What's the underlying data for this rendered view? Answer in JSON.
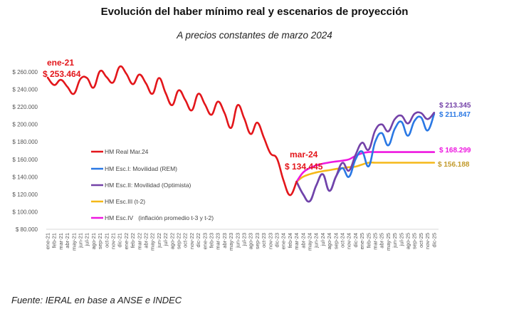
{
  "chart_data": {
    "type": "line",
    "title": "Evolución del haber mínimo real y escenarios de proyección",
    "subtitle": "A precios constantes de marzo 2024",
    "source": "Fuente: IERAL en base a ANSE e INDEC",
    "xlabel": "",
    "ylabel": "",
    "ylim": [
      80000,
      260000
    ],
    "y_ticks": [
      80000,
      100000,
      120000,
      140000,
      160000,
      180000,
      200000,
      220000,
      240000,
      260000
    ],
    "y_tick_labels": [
      "$ 80.000",
      "$ 100.000",
      "$ 120.000",
      "$ 140.000",
      "$ 160.000",
      "$ 180.000",
      "$ 200.000",
      "$ 220.000",
      "$ 240.000",
      "$ 260.000"
    ],
    "grid": false,
    "legend_position": "center-left",
    "categories": [
      "ene-21",
      "feb-21",
      "mar-21",
      "abr-21",
      "may-21",
      "jun-21",
      "jul-21",
      "ago-21",
      "sep-21",
      "oct-21",
      "nov-21",
      "dic-21",
      "ene-22",
      "feb-22",
      "mar-22",
      "abr-22",
      "may-22",
      "jun-22",
      "jul-22",
      "ago-22",
      "sep-22",
      "oct-22",
      "nov-22",
      "dic-22",
      "ene-23",
      "feb-23",
      "mar-23",
      "abr-23",
      "may-23",
      "jun-23",
      "jul-23",
      "ago-23",
      "sep-23",
      "oct-23",
      "nov-23",
      "dic-23",
      "ene-24",
      "feb-24",
      "mar-24",
      "abr-24",
      "may-24",
      "jun-24",
      "jul-24",
      "ago-24",
      "sep-24",
      "oct-24",
      "nov-24",
      "dic-24",
      "ene-25",
      "feb-25",
      "mar-25",
      "abr-25",
      "may-25",
      "jun-25",
      "jul-25",
      "ago-25",
      "sep-25",
      "oct-25",
      "nov-25",
      "dic-25"
    ],
    "series": [
      {
        "name": "HM Real Mar.24",
        "color": "#e3161b",
        "start_index": 0,
        "values": [
          253464,
          245000,
          251000,
          243000,
          235000,
          252000,
          253000,
          242000,
          261000,
          254000,
          248000,
          266000,
          258000,
          246000,
          257000,
          247000,
          235000,
          253000,
          236000,
          222000,
          239000,
          228000,
          216000,
          235000,
          223000,
          211000,
          226000,
          213000,
          196000,
          222000,
          207000,
          189000,
          202000,
          185000,
          167000,
          161000,
          136000,
          119000,
          134445
        ]
      },
      {
        "name": "HM Esc.I: Movilidad (REM)",
        "color": "#2a78e4",
        "start_index": 38,
        "values": [
          134445,
          120000,
          112000,
          130000,
          143000,
          124000,
          140000,
          150000,
          140000,
          160000,
          169000,
          152000,
          180000,
          190000,
          176000,
          195000,
          203000,
          187000,
          204000,
          208000,
          193000,
          211847
        ]
      },
      {
        "name": "HM Esc.II: Movilidad (Optimista)",
        "color": "#7442a8",
        "start_index": 38,
        "values": [
          134445,
          120000,
          112000,
          130000,
          143000,
          124000,
          140000,
          156000,
          147000,
          165000,
          179000,
          171000,
          193000,
          200000,
          192000,
          206000,
          210000,
          201000,
          212000,
          213000,
          206000,
          213345
        ]
      },
      {
        "name": "HM Esc.III (t-2)",
        "color": "#f5b818",
        "start_index": 38,
        "values": [
          134445,
          140000,
          143000,
          145000,
          146500,
          147600,
          149000,
          150000,
          151000,
          151700,
          154000,
          156188,
          156188,
          156188,
          156188,
          156188,
          156188,
          156188,
          156188,
          156188,
          156188,
          156188
        ]
      },
      {
        "name": "HM Esc.IV   (inflación promedio t-3 y t-2)",
        "color": "#ee18e0",
        "start_index": 38,
        "values": [
          134445,
          145000,
          150000,
          153000,
          155000,
          156500,
          157500,
          158500,
          160000,
          164000,
          167000,
          168299,
          168299,
          168299,
          168299,
          168299,
          168299,
          168299,
          168299,
          168299,
          168299,
          168299
        ]
      }
    ],
    "annotations": [
      {
        "label": "ene-21",
        "value_label": "$ 253.464",
        "color": "#e3161b",
        "index": 0
      },
      {
        "label": "mar-24",
        "value_label": "$ 134.445",
        "color": "#e3161b",
        "index": 38
      },
      {
        "value_label": "$ 213.345",
        "color": "#7442a8",
        "series": "HM Esc.II: Movilidad (Optimista)"
      },
      {
        "value_label": "$ 211.847",
        "color": "#2a78e4",
        "series": "HM Esc.I: Movilidad (REM)"
      },
      {
        "value_label": "$ 168.299",
        "color": "#ee18e0",
        "series": "HM Esc.IV   (inflación promedio t-3 y t-2)"
      },
      {
        "value_label": "$ 156.188",
        "color": "#c29a2a",
        "series": "HM Esc.III (t-2)"
      }
    ]
  }
}
